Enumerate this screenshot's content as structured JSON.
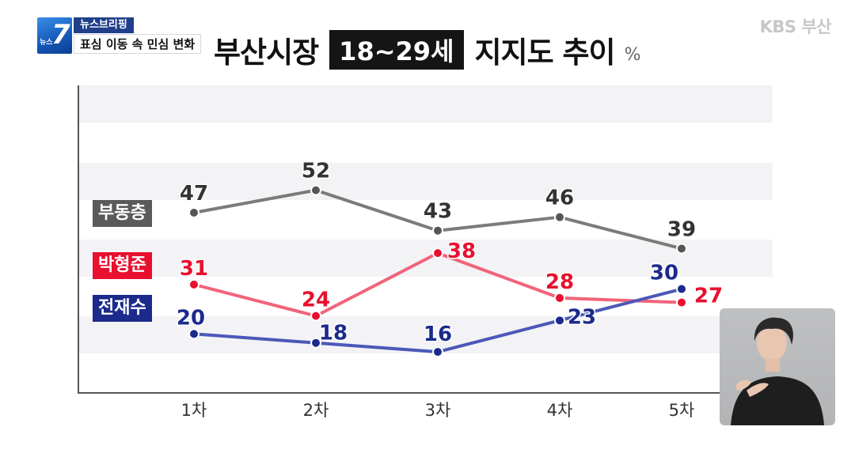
{
  "broadcast": {
    "program_small": "뉴스",
    "program_number": "7",
    "segment": "뉴스브리핑",
    "headline": "표심 이동 속 민심 변화",
    "channel": "KBS 부산"
  },
  "chart_title": {
    "prefix": "부산시장",
    "highlight": "18~29세",
    "suffix": "지지도 추이",
    "unit": "%"
  },
  "chart_data": {
    "type": "line",
    "title": "부산시장 18~29세 지지도 추이",
    "unit": "%",
    "categories": [
      "1차",
      "2차",
      "3차",
      "4차",
      "5차"
    ],
    "ylim": [
      0,
      65
    ],
    "legend_placement": "left",
    "series": [
      {
        "name": "부동층",
        "values": [
          47,
          52,
          43,
          46,
          39
        ],
        "color": "#7b7b7b",
        "label_color": "#333333"
      },
      {
        "name": "박형준",
        "values": [
          31,
          24,
          38,
          28,
          27
        ],
        "color": "#f0647a",
        "label_color": "#e8102e"
      },
      {
        "name": "전재수",
        "values": [
          20,
          18,
          16,
          23,
          30
        ],
        "color": "#4c58b8",
        "label_color": "#1c2a8c"
      }
    ]
  },
  "inset": {
    "description_icon": "sign-language-interpreter"
  }
}
